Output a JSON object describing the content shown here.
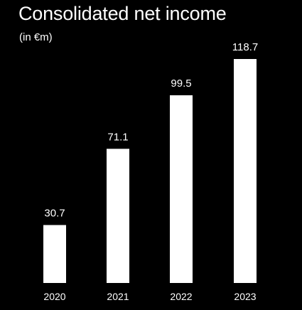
{
  "chart_data": {
    "type": "bar",
    "title": "Consolidated net income",
    "subtitle": "(in €m)",
    "categories": [
      "2020",
      "2021",
      "2022",
      "2023"
    ],
    "values": [
      30.7,
      71.1,
      99.5,
      118.7
    ],
    "value_labels": [
      "30.7",
      "71.1",
      "99.5",
      "118.7"
    ],
    "xlabel": "",
    "ylabel": "",
    "ylim": [
      0,
      118.7
    ],
    "grid": false,
    "colors": {
      "background": "#000000",
      "bar": "#ffffff",
      "text": "#ffffff"
    }
  }
}
